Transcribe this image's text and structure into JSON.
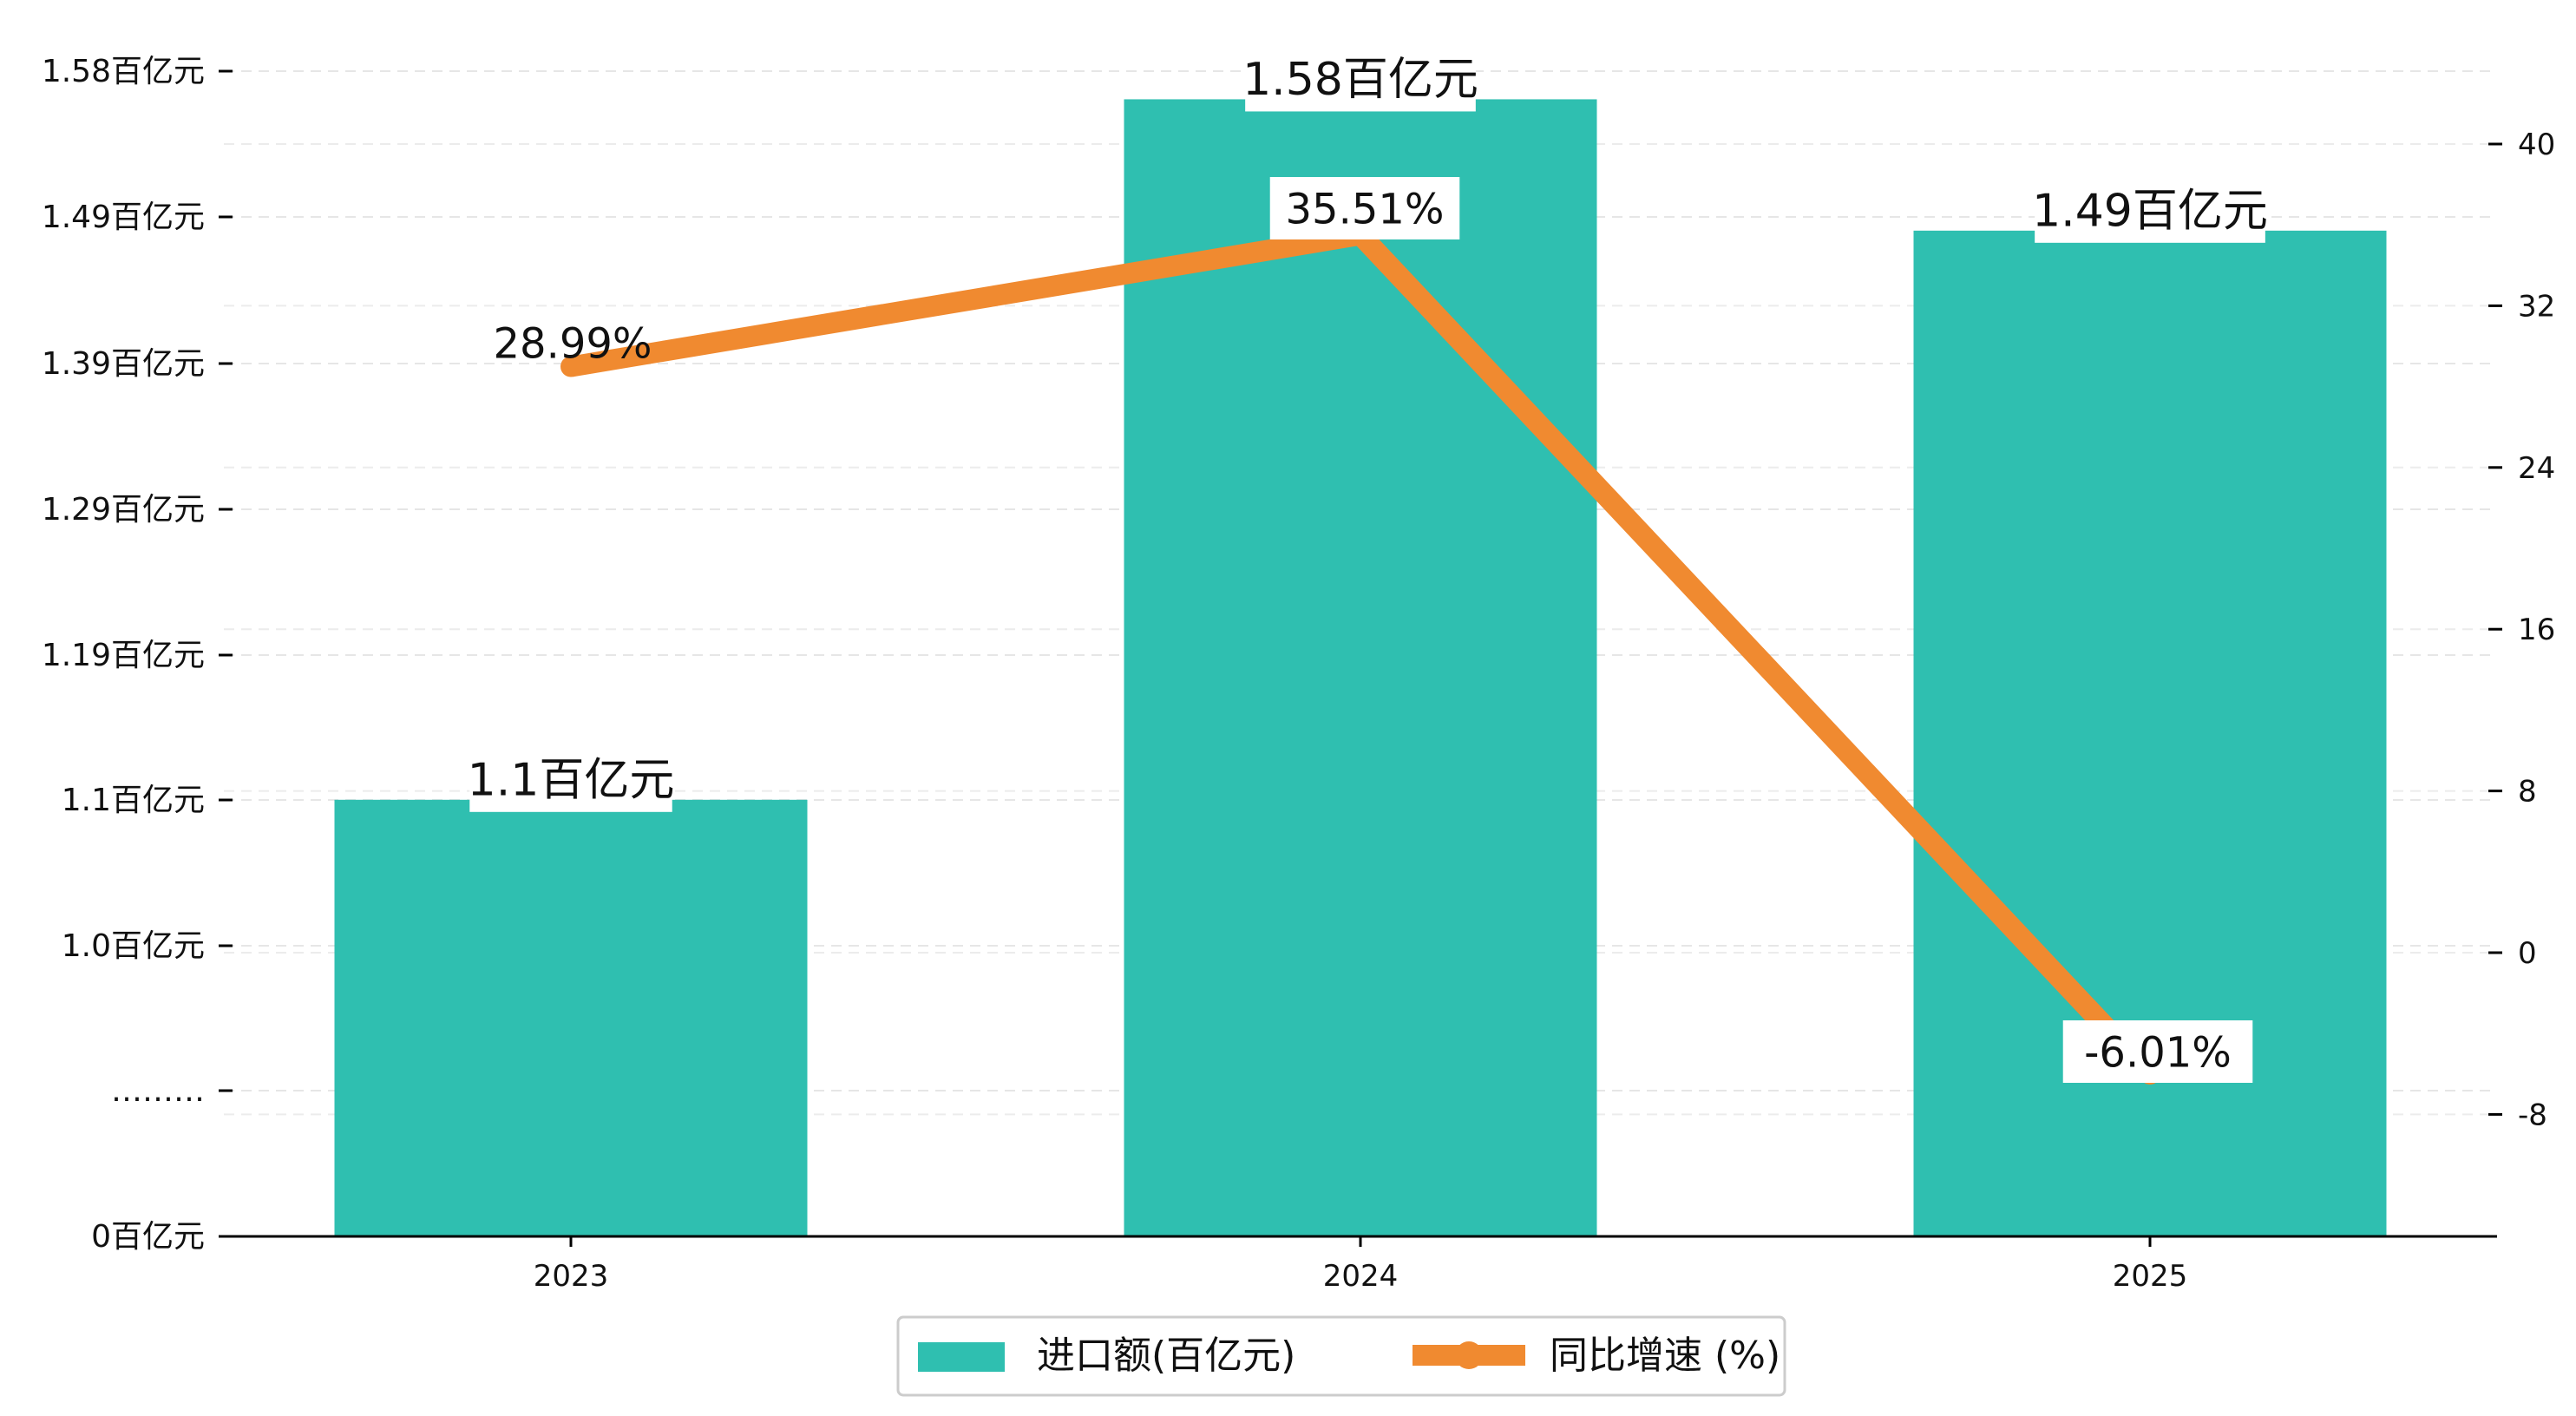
{
  "chart_data": {
    "type": "bar",
    "categories": [
      "2023",
      "2024",
      "2025"
    ],
    "series": [
      {
        "name": "进口额(百亿元)",
        "type": "bar",
        "axis": "left",
        "values": [
          1.1,
          1.58,
          1.49
        ],
        "labels": [
          "1.1百亿元",
          "1.58百亿元",
          "1.49百亿元"
        ],
        "color": "#2fbfb0"
      },
      {
        "name": "同比增速 (%)",
        "type": "line",
        "axis": "right",
        "values": [
          28.99,
          35.51,
          -6.01
        ],
        "labels": [
          "28.99%",
          "35.51%",
          "-6.01%"
        ],
        "color": "#f08a30"
      }
    ],
    "left_axis": {
      "tick_labels": [
        "0百亿元",
        "………",
        "1.0百亿元",
        "1.1百亿元",
        "1.19百亿元",
        "1.29百亿元",
        "1.39百亿元",
        "1.49百亿元",
        "1.58百亿元"
      ],
      "broken": true
    },
    "right_axis": {
      "ticks": [
        -8,
        0,
        8,
        16,
        24,
        32,
        40
      ],
      "ylim": [
        -14.1,
        43.3
      ]
    },
    "grid": true,
    "legend_position": "bottom-center"
  }
}
